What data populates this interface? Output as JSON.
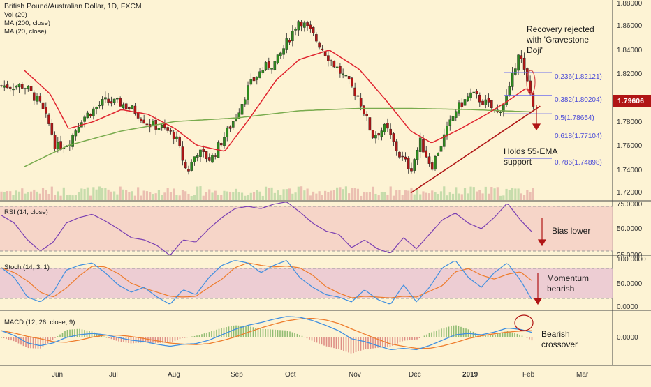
{
  "colors": {
    "background": "#fdf3d4",
    "bull": "#2e8b1e",
    "bear": "#b01515",
    "ema20": "#e0242f",
    "ma200": "#79ab4e",
    "trendline": "#b01515",
    "fib": "#7070ee",
    "rsi": "#7a3fb2",
    "rsi_band": "#f3cbc4",
    "stoch_k": "#3f8fe0",
    "stoch_d": "#ee7c2c",
    "stoch_band": "#e8c3d2",
    "macd_line": "#3f8fe0",
    "signal_line": "#ee7c2c",
    "price_label_bg": "#b01515",
    "annotation": "#1a1a1a"
  },
  "header": {
    "title": "British Pound/Australian Dollar, 1D, FXCM",
    "vol": "Vol (20)",
    "ma200": "MA (200, close)",
    "ma20": "MA (20, close)"
  },
  "price_axis_labels": [
    "1.88000",
    "1.86000",
    "1.84000",
    "1.82000",
    "1.78000",
    "1.76000",
    "1.74000",
    "1.72000"
  ],
  "last_price_label": "1.79606",
  "fib_labels": [
    "0.236(1.82121)",
    "0.382(1.80204)",
    "0.5(1.78654)",
    "0.618(1.77104)",
    "0.786(1.74898)"
  ],
  "annotations": {
    "recovery": [
      "Recovery rejected",
      "with 'Gravestone",
      "Doji'"
    ],
    "holds": [
      "Holds 55-EMA",
      "support"
    ],
    "rsi": "Bias lower",
    "stoch": [
      "Momentum",
      "bearish"
    ],
    "macd": [
      "Bearish",
      "crossover"
    ]
  },
  "panels": {
    "rsi": {
      "label": "RSI (14, close)",
      "axis": [
        "75.0000",
        "50.0000",
        "25.0000"
      ]
    },
    "stoch": {
      "label": "Stoch (14, 3, 1)",
      "axis": [
        "100.0000",
        "50.0000",
        "0.0000"
      ]
    },
    "macd": {
      "label": "MACD (12, 26, close, 9)",
      "axis": [
        "0.0000"
      ]
    }
  },
  "x_axis_labels": [
    "Jun",
    "Jul",
    "Aug",
    "Sep",
    "Oct",
    "Nov",
    "Dec",
    "2019",
    "Feb",
    "Mar"
  ],
  "chart_data": {
    "type": "candlestick",
    "symbol": "GBP/AUD",
    "timeframe": "1D",
    "y_range": [
      1.714,
      1.882
    ],
    "close_path": [
      {
        "t": "May 14",
        "y": 1.81
      },
      {
        "t": "May 22",
        "y": 1.796
      },
      {
        "t": "May 28",
        "y": 1.775
      },
      {
        "t": "Jun 1",
        "y": 1.758
      },
      {
        "t": "Jun 8",
        "y": 1.762
      },
      {
        "t": "Jun 15",
        "y": 1.782
      },
      {
        "t": "Jun 22",
        "y": 1.79
      },
      {
        "t": "Jun 28",
        "y": 1.797
      },
      {
        "t": "Jul 6",
        "y": 1.795
      },
      {
        "t": "Jul 13",
        "y": 1.789
      },
      {
        "t": "Jul 20",
        "y": 1.778
      },
      {
        "t": "Jul 27",
        "y": 1.775
      },
      {
        "t": "Aug 3",
        "y": 1.768
      },
      {
        "t": "Aug 9",
        "y": 1.737
      },
      {
        "t": "Aug 14",
        "y": 1.755
      },
      {
        "t": "Aug 21",
        "y": 1.748
      },
      {
        "t": "Aug 28",
        "y": 1.768
      },
      {
        "t": "Sep 3",
        "y": 1.785
      },
      {
        "t": "Sep 10",
        "y": 1.81
      },
      {
        "t": "Sep 18",
        "y": 1.825
      },
      {
        "t": "Sep 25",
        "y": 1.83
      },
      {
        "t": "Oct 1",
        "y": 1.85
      },
      {
        "t": "Oct 6",
        "y": 1.866
      },
      {
        "t": "Oct 13",
        "y": 1.852
      },
      {
        "t": "Oct 21",
        "y": 1.833
      },
      {
        "t": "Oct 28",
        "y": 1.818
      },
      {
        "t": "Nov 5",
        "y": 1.8
      },
      {
        "t": "Nov 12",
        "y": 1.768
      },
      {
        "t": "Nov 19",
        "y": 1.775
      },
      {
        "t": "Nov 26",
        "y": 1.752
      },
      {
        "t": "Dec 1",
        "y": 1.74
      },
      {
        "t": "Dec 6",
        "y": 1.763
      },
      {
        "t": "Dec 12",
        "y": 1.742
      },
      {
        "t": "Dec 18",
        "y": 1.765
      },
      {
        "t": "Dec 25",
        "y": 1.79
      },
      {
        "t": "Jan 2",
        "y": 1.803
      },
      {
        "t": "Jan 10",
        "y": 1.795
      },
      {
        "t": "Jan 16",
        "y": 1.787
      },
      {
        "t": "Jan 22",
        "y": 1.805
      },
      {
        "t": "Jan 27",
        "y": 1.84
      },
      {
        "t": "Jan 31",
        "y": 1.815
      },
      {
        "t": "Feb 4",
        "y": 1.796
      }
    ],
    "ma20": [
      {
        "t": "May 14",
        "y": 1.823
      },
      {
        "t": "May 28",
        "y": 1.803
      },
      {
        "t": "Jun 8",
        "y": 1.774
      },
      {
        "t": "Jun 22",
        "y": 1.78
      },
      {
        "t": "Jul 6",
        "y": 1.79
      },
      {
        "t": "Jul 20",
        "y": 1.786
      },
      {
        "t": "Aug 3",
        "y": 1.774
      },
      {
        "t": "Aug 14",
        "y": 1.76
      },
      {
        "t": "Aug 28",
        "y": 1.755
      },
      {
        "t": "Sep 10",
        "y": 1.782
      },
      {
        "t": "Sep 25",
        "y": 1.815
      },
      {
        "t": "Oct 6",
        "y": 1.832
      },
      {
        "t": "Oct 21",
        "y": 1.84
      },
      {
        "t": "Nov 5",
        "y": 1.824
      },
      {
        "t": "Nov 19",
        "y": 1.798
      },
      {
        "t": "Dec 1",
        "y": 1.772
      },
      {
        "t": "Dec 12",
        "y": 1.762
      },
      {
        "t": "Dec 25",
        "y": 1.772
      },
      {
        "t": "Jan 10",
        "y": 1.786
      },
      {
        "t": "Jan 22",
        "y": 1.798
      },
      {
        "t": "Jan 31",
        "y": 1.808
      },
      {
        "t": "Feb 4",
        "y": 1.803
      }
    ],
    "ma200": [
      {
        "t": "May 14",
        "y": 1.742
      },
      {
        "t": "Jun 8",
        "y": 1.76
      },
      {
        "t": "Jul 6",
        "y": 1.772
      },
      {
        "t": "Aug 3",
        "y": 1.78
      },
      {
        "t": "Sep 3",
        "y": 1.783
      },
      {
        "t": "Oct 6",
        "y": 1.789
      },
      {
        "t": "Nov 5",
        "y": 1.791
      },
      {
        "t": "Dec 1",
        "y": 1.791
      },
      {
        "t": "Jan 2",
        "y": 1.79
      },
      {
        "t": "Feb 4",
        "y": 1.788
      }
    ],
    "trendline": [
      {
        "t": "Dec 1",
        "y": 1.72
      },
      {
        "t": "Feb 4",
        "y": 1.79
      }
    ],
    "fib_levels": [
      {
        "ratio": 0.236,
        "price": 1.82121
      },
      {
        "ratio": 0.382,
        "price": 1.80204
      },
      {
        "ratio": 0.5,
        "price": 1.78654
      },
      {
        "ratio": 0.618,
        "price": 1.77104
      },
      {
        "ratio": 0.786,
        "price": 1.74898
      }
    ],
    "last_price": 1.79606,
    "rsi": {
      "range": [
        25,
        75
      ],
      "upper_band": 70,
      "lower_band": 30,
      "last": 46,
      "path": [
        62,
        55,
        40,
        30,
        38,
        55,
        60,
        63,
        57,
        50,
        42,
        40,
        35,
        26,
        40,
        38,
        50,
        60,
        68,
        70,
        68,
        72,
        74,
        65,
        55,
        48,
        45,
        33,
        40,
        32,
        28,
        42,
        32,
        45,
        58,
        64,
        55,
        50,
        60,
        73,
        58,
        46
      ]
    },
    "stoch": {
      "range": [
        0,
        100
      ],
      "upper_band": 80,
      "lower_band": 20,
      "k_last": 10,
      "d_last": 28,
      "k_path": [
        80,
        60,
        20,
        10,
        30,
        75,
        85,
        90,
        70,
        45,
        30,
        40,
        20,
        5,
        35,
        25,
        60,
        85,
        95,
        90,
        70,
        85,
        95,
        60,
        40,
        25,
        20,
        10,
        35,
        15,
        5,
        45,
        10,
        40,
        80,
        95,
        60,
        40,
        70,
        90,
        55,
        10
      ]
    },
    "macd": {
      "last_macd": 0.007,
      "last_signal": 0.009,
      "macd_path": [
        0.01,
        0.003,
        -0.008,
        -0.012,
        -0.008,
        0.0,
        0.004,
        0.006,
        0.004,
        0.0,
        -0.004,
        -0.006,
        -0.01,
        -0.013,
        -0.01,
        -0.009,
        -0.004,
        0.004,
        0.012,
        0.018,
        0.022,
        0.027,
        0.031,
        0.03,
        0.025,
        0.018,
        0.01,
        -0.002,
        -0.006,
        -0.012,
        -0.018,
        -0.016,
        -0.018,
        -0.012,
        -0.004,
        0.004,
        0.006,
        0.004,
        0.008,
        0.014,
        0.012,
        0.007
      ]
    }
  }
}
